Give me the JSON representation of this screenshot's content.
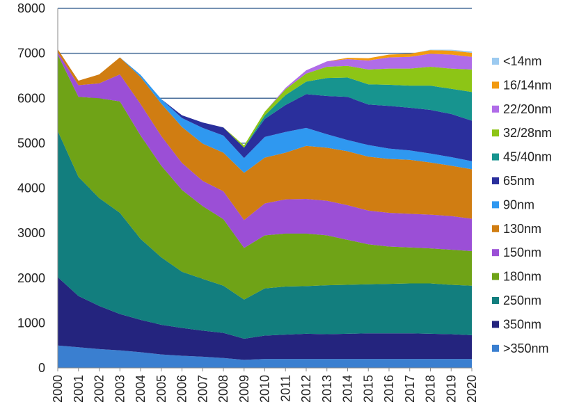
{
  "chart_data": {
    "type": "area",
    "stacked": true,
    "title": "",
    "xlabel": "",
    "ylabel": "",
    "x": [
      "2000",
      "2001",
      "2002",
      "2003",
      "2004",
      "2005",
      "2006",
      "2007",
      "2008",
      "2009",
      "2010",
      "2011",
      "2012",
      "2013",
      "2014",
      "2015",
      "2016",
      "2017",
      "2018",
      "2019",
      "2020"
    ],
    "ylim": [
      0,
      8000
    ],
    "yticks": [
      "0",
      "1000",
      "2000",
      "3000",
      "4000",
      "5000",
      "6000",
      "7000",
      "8000"
    ],
    "grid": "horizontal",
    "legend_position": "right",
    "series": [
      {
        "name": ">350nm",
        "color": "#3a7fd0",
        "values": [
          500,
          460,
          420,
          390,
          350,
          300,
          270,
          250,
          220,
          180,
          200,
          200,
          200,
          200,
          200,
          200,
          200,
          200,
          200,
          200,
          200
        ]
      },
      {
        "name": "350nm",
        "color": "#24247e",
        "values": [
          1520,
          1140,
          960,
          810,
          720,
          660,
          620,
          580,
          560,
          470,
          520,
          540,
          560,
          550,
          560,
          570,
          570,
          570,
          560,
          550,
          530
        ]
      },
      {
        "name": "250nm",
        "color": "#127e7e",
        "values": [
          3250,
          2650,
          2400,
          2250,
          1800,
          1500,
          1250,
          1150,
          1050,
          870,
          1050,
          1070,
          1060,
          1090,
          1090,
          1090,
          1100,
          1110,
          1120,
          1100,
          1100
        ]
      },
      {
        "name": "180nm",
        "color": "#6fa317",
        "values": [
          1700,
          1780,
          2220,
          2480,
          2300,
          2040,
          1820,
          1620,
          1480,
          1150,
          1180,
          1180,
          1170,
          1110,
          1000,
          890,
          830,
          800,
          780,
          780,
          770
        ]
      },
      {
        "name": "150nm",
        "color": "#9b4fd6",
        "values": [
          50,
          260,
          330,
          600,
          700,
          660,
          600,
          560,
          620,
          620,
          710,
          760,
          770,
          770,
          770,
          750,
          750,
          750,
          750,
          750,
          720
        ]
      },
      {
        "name": "130nm",
        "color": "#d07d12",
        "values": [
          70,
          100,
          200,
          380,
          600,
          720,
          800,
          830,
          860,
          1050,
          1020,
          1040,
          1180,
          1180,
          1200,
          1200,
          1200,
          1200,
          1160,
          1120,
          1100
        ]
      },
      {
        "name": "90nm",
        "color": "#2f98f0",
        "values": [
          0,
          0,
          0,
          0,
          50,
          100,
          200,
          350,
          380,
          330,
          460,
          460,
          400,
          300,
          250,
          260,
          230,
          210,
          200,
          190,
          180
        ]
      },
      {
        "name": "65nm",
        "color": "#2a2f9c",
        "values": [
          0,
          0,
          0,
          0,
          0,
          0,
          60,
          120,
          180,
          230,
          400,
          600,
          750,
          850,
          960,
          900,
          950,
          950,
          970,
          960,
          900
        ]
      },
      {
        "name": "45/40nm",
        "color": "#17948f",
        "values": [
          0,
          0,
          0,
          0,
          0,
          0,
          0,
          0,
          0,
          0,
          80,
          220,
          280,
          400,
          430,
          450,
          470,
          490,
          540,
          560,
          640
        ]
      },
      {
        "name": "32/28nm",
        "color": "#8dc516",
        "values": [
          0,
          0,
          0,
          0,
          0,
          0,
          0,
          0,
          0,
          50,
          80,
          130,
          180,
          250,
          260,
          330,
          360,
          380,
          420,
          450,
          500
        ]
      },
      {
        "name": "22/20nm",
        "color": "#b06ce8",
        "values": [
          0,
          0,
          0,
          0,
          0,
          0,
          0,
          0,
          0,
          0,
          0,
          30,
          70,
          120,
          150,
          200,
          250,
          260,
          290,
          310,
          280
        ]
      },
      {
        "name": "16/14nm",
        "color": "#f29a10",
        "values": [
          0,
          0,
          0,
          0,
          0,
          0,
          0,
          0,
          0,
          0,
          0,
          0,
          0,
          0,
          30,
          50,
          60,
          70,
          80,
          90,
          90
        ]
      },
      {
        "name": "<14nm",
        "color": "#9ccaf0",
        "values": [
          0,
          0,
          0,
          0,
          0,
          0,
          0,
          0,
          0,
          0,
          0,
          0,
          0,
          0,
          0,
          0,
          0,
          0,
          10,
          20,
          30
        ]
      }
    ],
    "legend_order": [
      "<14nm",
      "16/14nm",
      "22/20nm",
      "32/28nm",
      "45/40nm",
      "65nm",
      "90nm",
      "130nm",
      "150nm",
      "180nm",
      "250nm",
      "350nm",
      ">350nm"
    ],
    "colors": {
      "gridline": "#4a6f9a",
      "axis": "#888888"
    }
  }
}
